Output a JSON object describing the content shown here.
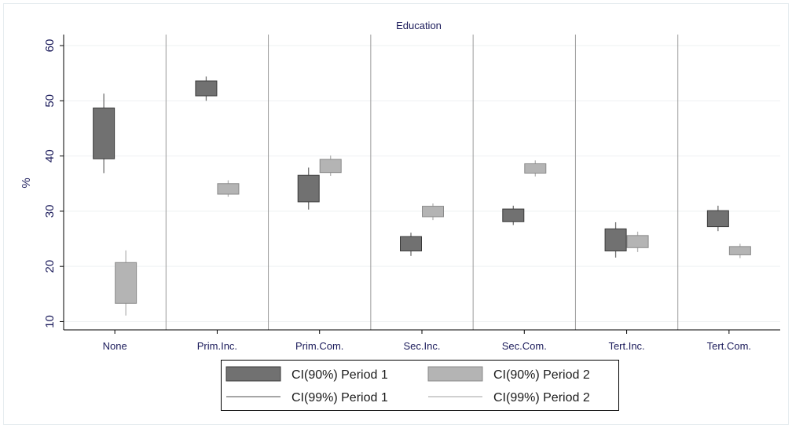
{
  "chart_data": {
    "type": "boxplot",
    "title": "Education",
    "xlabel": "",
    "ylabel": "%",
    "ylim": [
      8.5,
      62
    ],
    "yticks": [
      10,
      20,
      30,
      40,
      50,
      60
    ],
    "grid": true,
    "legend_position": "bottom",
    "categories": [
      "None",
      "Prim.Inc.",
      "Prim.Com.",
      "Sec.Inc.",
      "Sec.Com.",
      "Tert.Inc.",
      "Tert.Com."
    ],
    "series": [
      {
        "name": "Period 1",
        "color": "#717171",
        "ci90": [
          [
            39.5,
            48.7
          ],
          [
            50.9,
            53.6
          ],
          [
            31.7,
            36.5
          ],
          [
            22.8,
            25.4
          ],
          [
            28.1,
            30.4
          ],
          [
            22.8,
            26.8
          ],
          [
            27.2,
            30.1
          ]
        ],
        "ci99": [
          [
            36.9,
            51.3
          ],
          [
            50.0,
            54.4
          ],
          [
            30.3,
            37.9
          ],
          [
            21.9,
            26.1
          ],
          [
            27.5,
            31.0
          ],
          [
            21.6,
            28.0
          ],
          [
            26.4,
            31.0
          ]
        ]
      },
      {
        "name": "Period 2",
        "color": "#b4b4b4",
        "ci90": [
          [
            13.3,
            20.7
          ],
          [
            33.1,
            35.0
          ],
          [
            37.0,
            39.4
          ],
          [
            29.0,
            30.9
          ],
          [
            36.9,
            38.6
          ],
          [
            23.4,
            25.6
          ],
          [
            22.1,
            23.6
          ]
        ],
        "ci99": [
          [
            11.1,
            22.9
          ],
          [
            32.6,
            35.6
          ],
          [
            36.4,
            40.1
          ],
          [
            28.4,
            31.4
          ],
          [
            36.3,
            39.2
          ],
          [
            22.6,
            26.3
          ],
          [
            21.5,
            24.1
          ]
        ]
      }
    ],
    "legend": {
      "items": [
        {
          "label": "CI(90%) Period 1",
          "kind": "box",
          "color": "#717171"
        },
        {
          "label": "CI(90%) Period 2",
          "kind": "box",
          "color": "#b4b4b4"
        },
        {
          "label": "CI(99%) Period 1",
          "kind": "line",
          "color": "#717171"
        },
        {
          "label": "CI(99%) Period 2",
          "kind": "line",
          "color": "#b4b4b4"
        }
      ]
    }
  }
}
